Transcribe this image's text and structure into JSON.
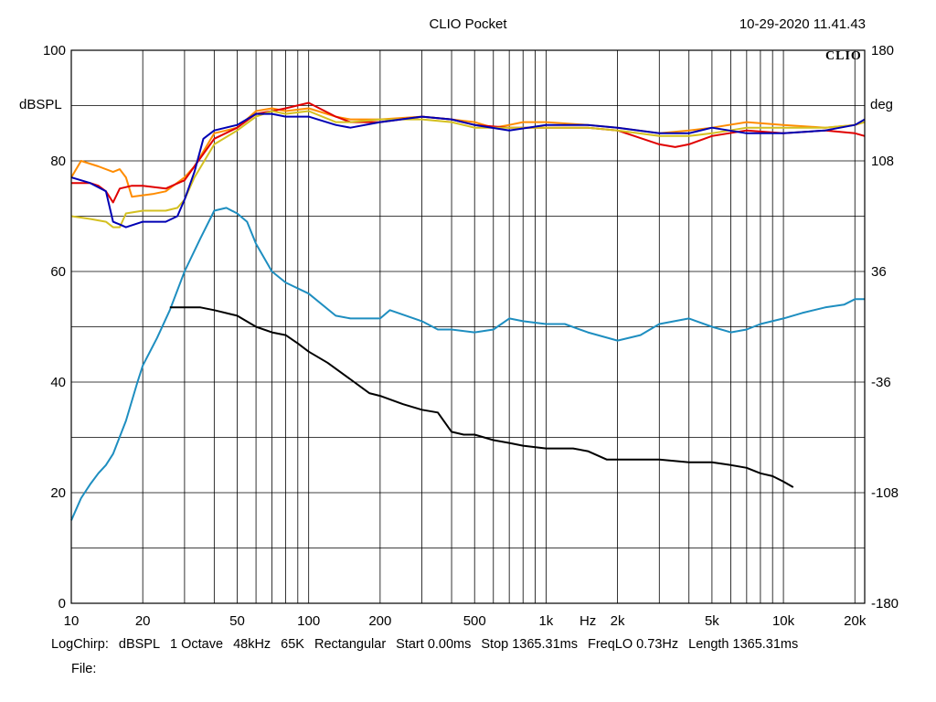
{
  "header": {
    "app_title": "CLIO Pocket",
    "timestamp": "10-29-2020 11.41.43",
    "logo_text": "CLIO"
  },
  "footer": {
    "items": [
      "LogChirp:",
      "dBSPL",
      "1 Octave",
      "48kHz",
      "65K",
      "Rectangular",
      "Start 0.00ms",
      "Stop 1365.31ms",
      "FreqLO 0.73Hz",
      "Length 1365.31ms"
    ],
    "file_label": "File:"
  },
  "chart_data": {
    "type": "line",
    "xscale": "log",
    "xlim": [
      10,
      22000
    ],
    "ylim": [
      0,
      100
    ],
    "y2lim": [
      -180,
      180
    ],
    "ylabel": "dBSPL",
    "y2label": "deg",
    "xticks": [
      {
        "v": 10,
        "label": "10"
      },
      {
        "v": 20,
        "label": "20"
      },
      {
        "v": 50,
        "label": "50"
      },
      {
        "v": 100,
        "label": "100"
      },
      {
        "v": 200,
        "label": "200"
      },
      {
        "v": 500,
        "label": "500"
      },
      {
        "v": 1000,
        "label": "1k"
      },
      {
        "v": 1500,
        "label": "Hz"
      },
      {
        "v": 2000,
        "label": "2k"
      },
      {
        "v": 5000,
        "label": "5k"
      },
      {
        "v": 10000,
        "label": "10k"
      },
      {
        "v": 20000,
        "label": "20k"
      }
    ],
    "yticks": [
      0,
      20,
      40,
      60,
      80,
      100
    ],
    "y2ticks": [
      -180,
      -108,
      -36,
      36,
      108,
      180
    ],
    "grid": true,
    "series": [
      {
        "color": "#ff8c00",
        "points": [
          [
            10,
            77
          ],
          [
            11,
            80
          ],
          [
            13,
            79
          ],
          [
            15,
            78
          ],
          [
            16,
            78.5
          ],
          [
            17,
            77
          ],
          [
            18,
            73.5
          ],
          [
            22,
            74
          ],
          [
            25,
            74.5
          ],
          [
            30,
            77
          ],
          [
            33,
            79
          ],
          [
            40,
            85
          ],
          [
            45,
            85.5
          ],
          [
            50,
            86
          ],
          [
            60,
            89
          ],
          [
            70,
            89.5
          ],
          [
            80,
            89
          ],
          [
            100,
            89.5
          ],
          [
            130,
            88
          ],
          [
            150,
            87.5
          ],
          [
            200,
            87.5
          ],
          [
            300,
            88
          ],
          [
            400,
            87.5
          ],
          [
            500,
            87
          ],
          [
            600,
            86
          ],
          [
            700,
            86.5
          ],
          [
            800,
            87
          ],
          [
            1000,
            87
          ],
          [
            1500,
            86.5
          ],
          [
            2000,
            86
          ],
          [
            3000,
            85
          ],
          [
            4000,
            85.5
          ],
          [
            5000,
            86
          ],
          [
            7000,
            87
          ],
          [
            10000,
            86.5
          ],
          [
            15000,
            86
          ],
          [
            20000,
            86.5
          ],
          [
            22000,
            87
          ]
        ]
      },
      {
        "color": "#e00000",
        "points": [
          [
            10,
            76
          ],
          [
            12,
            76
          ],
          [
            13,
            75.5
          ],
          [
            14,
            74.5
          ],
          [
            15,
            72.5
          ],
          [
            16,
            75
          ],
          [
            18,
            75.5
          ],
          [
            20,
            75.5
          ],
          [
            25,
            75
          ],
          [
            30,
            76.5
          ],
          [
            33,
            79
          ],
          [
            40,
            84
          ],
          [
            50,
            86
          ],
          [
            60,
            88.5
          ],
          [
            70,
            89
          ],
          [
            80,
            89.5
          ],
          [
            100,
            90.5
          ],
          [
            130,
            88
          ],
          [
            150,
            87
          ],
          [
            200,
            87
          ],
          [
            300,
            88
          ],
          [
            400,
            87.5
          ],
          [
            500,
            86.5
          ],
          [
            700,
            86
          ],
          [
            1000,
            86
          ],
          [
            1500,
            86
          ],
          [
            2000,
            85.5
          ],
          [
            3000,
            83
          ],
          [
            3500,
            82.5
          ],
          [
            4000,
            83
          ],
          [
            5000,
            84.5
          ],
          [
            7000,
            85.5
          ],
          [
            10000,
            85
          ],
          [
            15000,
            85.5
          ],
          [
            20000,
            85
          ],
          [
            22000,
            84.5
          ]
        ]
      },
      {
        "color": "#d4c020",
        "points": [
          [
            10,
            70
          ],
          [
            12,
            69.5
          ],
          [
            14,
            69
          ],
          [
            15,
            68
          ],
          [
            16,
            68
          ],
          [
            17,
            70.5
          ],
          [
            20,
            71
          ],
          [
            25,
            71
          ],
          [
            28,
            71.5
          ],
          [
            30,
            73
          ],
          [
            33,
            77
          ],
          [
            40,
            83
          ],
          [
            50,
            85.5
          ],
          [
            60,
            88
          ],
          [
            70,
            89
          ],
          [
            80,
            88.5
          ],
          [
            100,
            89
          ],
          [
            130,
            87
          ],
          [
            150,
            87
          ],
          [
            200,
            87.5
          ],
          [
            250,
            87.5
          ],
          [
            300,
            87.5
          ],
          [
            400,
            87
          ],
          [
            500,
            86
          ],
          [
            700,
            86
          ],
          [
            1000,
            86
          ],
          [
            1500,
            86
          ],
          [
            2000,
            85.5
          ],
          [
            3000,
            84.5
          ],
          [
            4000,
            84.5
          ],
          [
            5000,
            85
          ],
          [
            7000,
            86
          ],
          [
            10000,
            86
          ],
          [
            15000,
            86
          ],
          [
            20000,
            86.5
          ],
          [
            22000,
            87
          ]
        ]
      },
      {
        "color": "#0000b4",
        "points": [
          [
            10,
            77
          ],
          [
            12,
            76
          ],
          [
            14,
            74.5
          ],
          [
            15,
            69
          ],
          [
            16,
            68.5
          ],
          [
            17,
            68
          ],
          [
            20,
            69
          ],
          [
            25,
            69
          ],
          [
            28,
            70
          ],
          [
            30,
            73
          ],
          [
            33,
            78
          ],
          [
            36,
            84
          ],
          [
            40,
            85.5
          ],
          [
            50,
            86.5
          ],
          [
            60,
            88.5
          ],
          [
            70,
            88.5
          ],
          [
            80,
            88
          ],
          [
            100,
            88
          ],
          [
            130,
            86.5
          ],
          [
            150,
            86
          ],
          [
            200,
            87
          ],
          [
            300,
            88
          ],
          [
            400,
            87.5
          ],
          [
            500,
            86.5
          ],
          [
            700,
            85.5
          ],
          [
            1000,
            86.5
          ],
          [
            1500,
            86.5
          ],
          [
            2000,
            86
          ],
          [
            3000,
            85
          ],
          [
            4000,
            85
          ],
          [
            5000,
            86
          ],
          [
            7000,
            85
          ],
          [
            10000,
            85
          ],
          [
            15000,
            85.5
          ],
          [
            20000,
            86.5
          ],
          [
            22000,
            87.5
          ]
        ]
      },
      {
        "color": "#1e8ec0",
        "points": [
          [
            10,
            15
          ],
          [
            11,
            19
          ],
          [
            12,
            21.5
          ],
          [
            13,
            23.5
          ],
          [
            14,
            25
          ],
          [
            15,
            27
          ],
          [
            17,
            33
          ],
          [
            19,
            40
          ],
          [
            20,
            43
          ],
          [
            23,
            48
          ],
          [
            26,
            53
          ],
          [
            30,
            60
          ],
          [
            35,
            66
          ],
          [
            40,
            71
          ],
          [
            45,
            71.5
          ],
          [
            50,
            70.5
          ],
          [
            55,
            69
          ],
          [
            60,
            65
          ],
          [
            70,
            60
          ],
          [
            80,
            58
          ],
          [
            100,
            56
          ],
          [
            130,
            52
          ],
          [
            150,
            51.5
          ],
          [
            200,
            51.5
          ],
          [
            220,
            53
          ],
          [
            300,
            51
          ],
          [
            350,
            49.5
          ],
          [
            400,
            49.5
          ],
          [
            500,
            49
          ],
          [
            600,
            49.5
          ],
          [
            700,
            51.5
          ],
          [
            800,
            51
          ],
          [
            1000,
            50.5
          ],
          [
            1200,
            50.5
          ],
          [
            1500,
            49
          ],
          [
            2000,
            47.5
          ],
          [
            2500,
            48.5
          ],
          [
            3000,
            50.5
          ],
          [
            4000,
            51.5
          ],
          [
            5000,
            50
          ],
          [
            6000,
            49
          ],
          [
            7000,
            49.5
          ],
          [
            8000,
            50.5
          ],
          [
            10000,
            51.5
          ],
          [
            12000,
            52.5
          ],
          [
            15000,
            53.5
          ],
          [
            18000,
            54
          ],
          [
            20000,
            55
          ],
          [
            22000,
            55
          ]
        ]
      },
      {
        "color": "#000000",
        "points": [
          [
            26,
            53.5
          ],
          [
            30,
            53.5
          ],
          [
            35,
            53.5
          ],
          [
            40,
            53
          ],
          [
            50,
            52
          ],
          [
            60,
            50
          ],
          [
            70,
            49
          ],
          [
            80,
            48.5
          ],
          [
            90,
            47
          ],
          [
            100,
            45.5
          ],
          [
            120,
            43.5
          ],
          [
            150,
            40.5
          ],
          [
            180,
            38
          ],
          [
            200,
            37.5
          ],
          [
            250,
            36
          ],
          [
            300,
            35
          ],
          [
            350,
            34.5
          ],
          [
            400,
            31
          ],
          [
            450,
            30.5
          ],
          [
            500,
            30.5
          ],
          [
            600,
            29.5
          ],
          [
            700,
            29
          ],
          [
            800,
            28.5
          ],
          [
            1000,
            28
          ],
          [
            1300,
            28
          ],
          [
            1500,
            27.5
          ],
          [
            1800,
            26
          ],
          [
            2000,
            26
          ],
          [
            3000,
            26
          ],
          [
            4000,
            25.5
          ],
          [
            5000,
            25.5
          ],
          [
            6000,
            25
          ],
          [
            7000,
            24.5
          ],
          [
            8000,
            23.5
          ],
          [
            9000,
            23
          ],
          [
            10000,
            22
          ],
          [
            11000,
            21
          ]
        ]
      }
    ]
  }
}
